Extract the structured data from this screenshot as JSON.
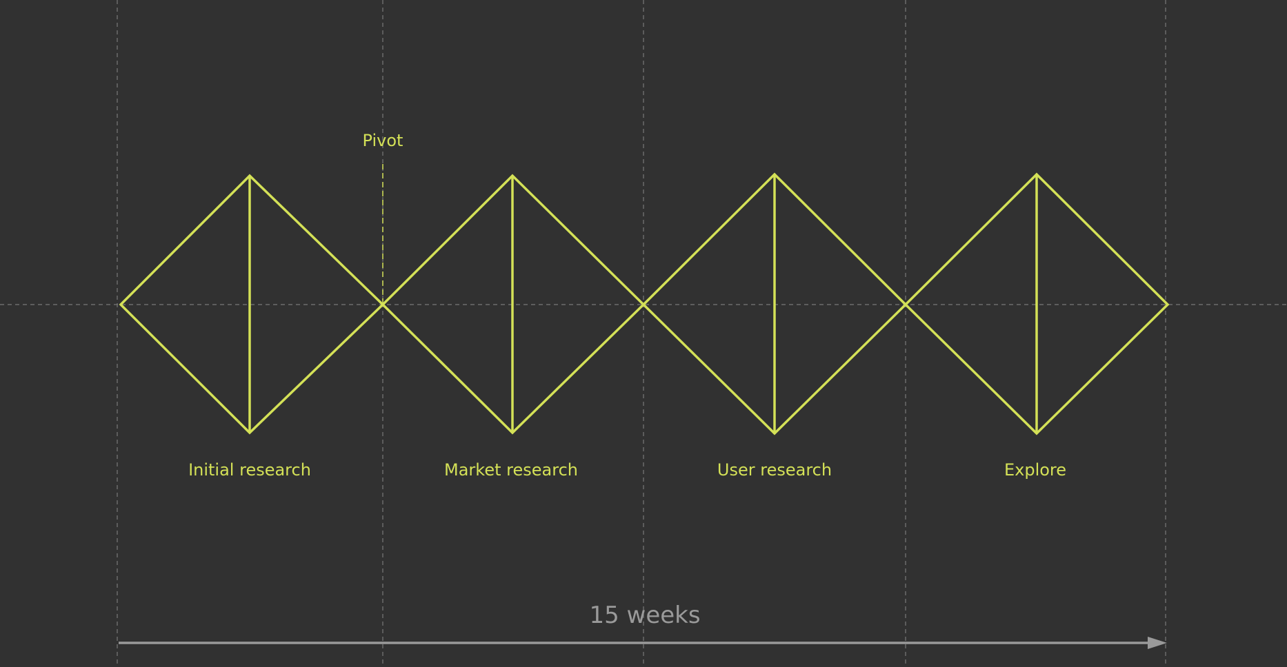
{
  "diagram": {
    "phases": [
      {
        "label": "Initial research"
      },
      {
        "label": "Market research"
      },
      {
        "label": "User research"
      },
      {
        "label": "Explore"
      }
    ],
    "pivot": {
      "label": "Pivot"
    },
    "duration": {
      "label": "15 weeks"
    },
    "colors": {
      "background": "#313131",
      "accent": "#d4e157",
      "guide": "#7a7a7a",
      "timeline": "#9a9a9a"
    }
  }
}
